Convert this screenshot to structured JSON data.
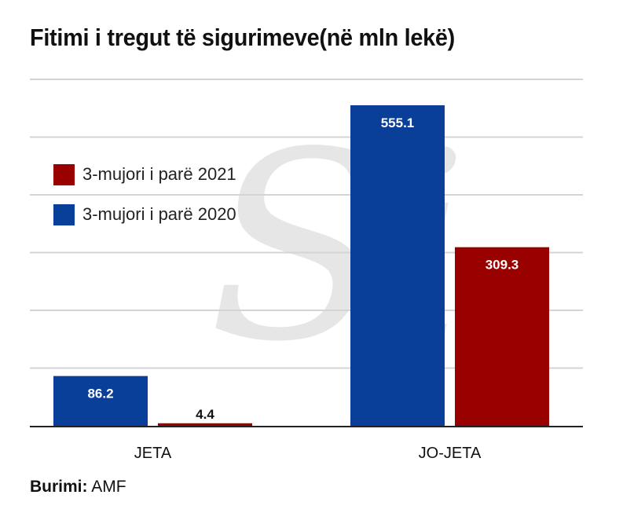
{
  "title": "Fitimi i tregut të sigurimeve(në mln lekë)",
  "source": {
    "label": "Burimi:",
    "value": "AMF"
  },
  "watermark": "Si",
  "chart_data": {
    "type": "bar",
    "title": "Fitimi i tregut të sigurimeve(në mln lekë)",
    "categories": [
      "JETA",
      "JO-JETA"
    ],
    "series": [
      {
        "name": "3-mujori i parë 2020",
        "color": "#0a3f99",
        "values": [
          86.2,
          555.1
        ]
      },
      {
        "name": "3-mujori i parë 2021",
        "color": "#990000",
        "values": [
          4.4,
          309.3
        ]
      }
    ],
    "ylim": [
      0,
      600
    ],
    "grid": true,
    "legend": "left",
    "legend_order": [
      1,
      0
    ]
  }
}
